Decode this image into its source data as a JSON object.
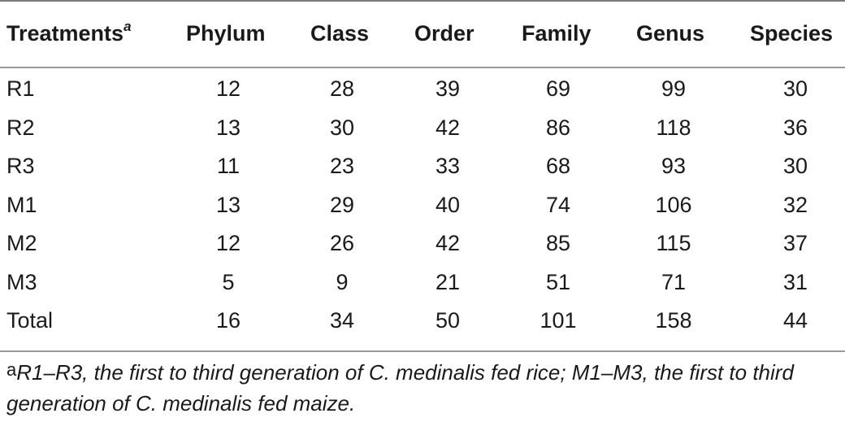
{
  "table": {
    "headers": {
      "treatments": "Treatments",
      "treatments_sup": "a",
      "phylum": "Phylum",
      "class": "Class",
      "order": "Order",
      "family": "Family",
      "genus": "Genus",
      "species": "Species"
    },
    "rows": [
      {
        "treatment": "R1",
        "phylum": "12",
        "class": "28",
        "order": "39",
        "family": "69",
        "genus": "99",
        "species": "30"
      },
      {
        "treatment": "R2",
        "phylum": "13",
        "class": "30",
        "order": "42",
        "family": "86",
        "genus": "118",
        "species": "36"
      },
      {
        "treatment": "R3",
        "phylum": "11",
        "class": "23",
        "order": "33",
        "family": "68",
        "genus": "93",
        "species": "30"
      },
      {
        "treatment": "M1",
        "phylum": "13",
        "class": "29",
        "order": "40",
        "family": "74",
        "genus": "106",
        "species": "32"
      },
      {
        "treatment": "M2",
        "phylum": "12",
        "class": "26",
        "order": "42",
        "family": "85",
        "genus": "115",
        "species": "37"
      },
      {
        "treatment": "M3",
        "phylum": "5",
        "class": "9",
        "order": "21",
        "family": "51",
        "genus": "71",
        "species": "31"
      },
      {
        "treatment": "Total",
        "phylum": "16",
        "class": "34",
        "order": "50",
        "family": "101",
        "genus": "158",
        "species": "44"
      }
    ]
  },
  "footnote": {
    "mark": "a",
    "text": "R1–R3, the first to third generation of C. medinalis fed rice; M1–M3, the first to third generation of C. medinalis fed maize."
  }
}
